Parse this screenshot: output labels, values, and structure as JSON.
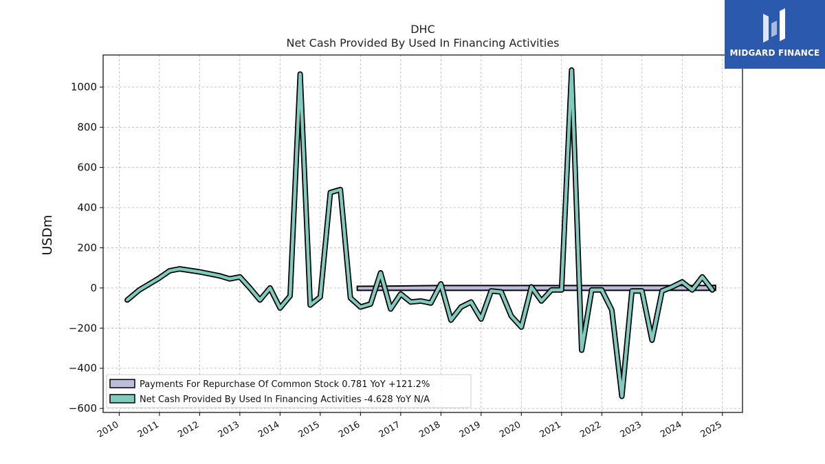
{
  "chart_data": {
    "type": "line",
    "title": "DHC",
    "subtitle": "Net Cash Provided By Used In Financing Activities",
    "ylabel": "USDm",
    "xlabel": "",
    "ylim": [
      -620,
      1160
    ],
    "xlim": [
      2009.6,
      2025.5
    ],
    "yticks": [
      -600,
      -400,
      -200,
      0,
      200,
      400,
      600,
      800,
      1000
    ],
    "xticks": [
      "2010",
      "2011",
      "2012",
      "2013",
      "2014",
      "2015",
      "2016",
      "2017",
      "2018",
      "2019",
      "2020",
      "2021",
      "2022",
      "2023",
      "2024",
      "2025"
    ],
    "grid": true,
    "legend_position": "lower-left",
    "series": [
      {
        "name": "Payments For Repurchase Of Common Stock  0.781 YoY +121.2%",
        "kind": "band",
        "color": "#bcbcdc",
        "x": [
          2015.92,
          2016.5,
          2017.0,
          2017.5,
          2018.0,
          2018.5,
          2019.0,
          2019.5,
          2020.0,
          2020.5,
          2021.0,
          2021.5,
          2022.0,
          2022.5,
          2023.0,
          2023.5,
          2024.0,
          2024.5,
          2024.83
        ],
        "values": [
          8,
          9,
          10,
          11,
          12,
          12,
          12,
          12,
          12,
          12,
          12,
          12,
          12,
          12,
          12,
          12,
          12,
          12,
          13
        ],
        "values_low": [
          -12,
          -12,
          -12,
          -12,
          -12,
          -12,
          -12,
          -12,
          -12,
          -12,
          -12,
          -12,
          -12,
          -12,
          -12,
          -12,
          -12,
          -12,
          -12
        ]
      },
      {
        "name": "Net Cash Provided By Used In Financing Activities  -4.628 YoY N/A",
        "kind": "line",
        "color": "#7fcbbd",
        "x": [
          2010.2,
          2010.5,
          2011.0,
          2011.25,
          2011.5,
          2012.0,
          2012.5,
          2012.75,
          2013.0,
          2013.25,
          2013.5,
          2013.75,
          2014.0,
          2014.25,
          2014.5,
          2014.75,
          2015.0,
          2015.25,
          2015.5,
          2015.75,
          2016.0,
          2016.25,
          2016.5,
          2016.75,
          2017.0,
          2017.25,
          2017.5,
          2017.75,
          2018.0,
          2018.25,
          2018.5,
          2018.75,
          2019.0,
          2019.25,
          2019.5,
          2019.75,
          2020.0,
          2020.25,
          2020.5,
          2020.75,
          2021.0,
          2021.25,
          2021.5,
          2021.75,
          2022.0,
          2022.25,
          2022.5,
          2022.75,
          2023.0,
          2023.25,
          2023.5,
          2023.75,
          2024.0,
          2024.25,
          2024.5,
          2024.75
        ],
        "values": [
          -60,
          -10,
          50,
          85,
          95,
          80,
          60,
          45,
          55,
          0,
          -60,
          0,
          -100,
          -40,
          1065,
          -85,
          -45,
          475,
          490,
          -50,
          -95,
          -80,
          75,
          -105,
          -30,
          -70,
          -65,
          -75,
          20,
          -160,
          -95,
          -70,
          -155,
          -15,
          -20,
          -140,
          -195,
          5,
          -65,
          -10,
          -10,
          1085,
          -310,
          -10,
          -10,
          -110,
          -540,
          -15,
          -15,
          -260,
          -15,
          5,
          30,
          -10,
          55,
          -10
        ]
      }
    ]
  },
  "logo": {
    "text": "MIDGARD FINANCE",
    "color": "#2a59ad"
  }
}
